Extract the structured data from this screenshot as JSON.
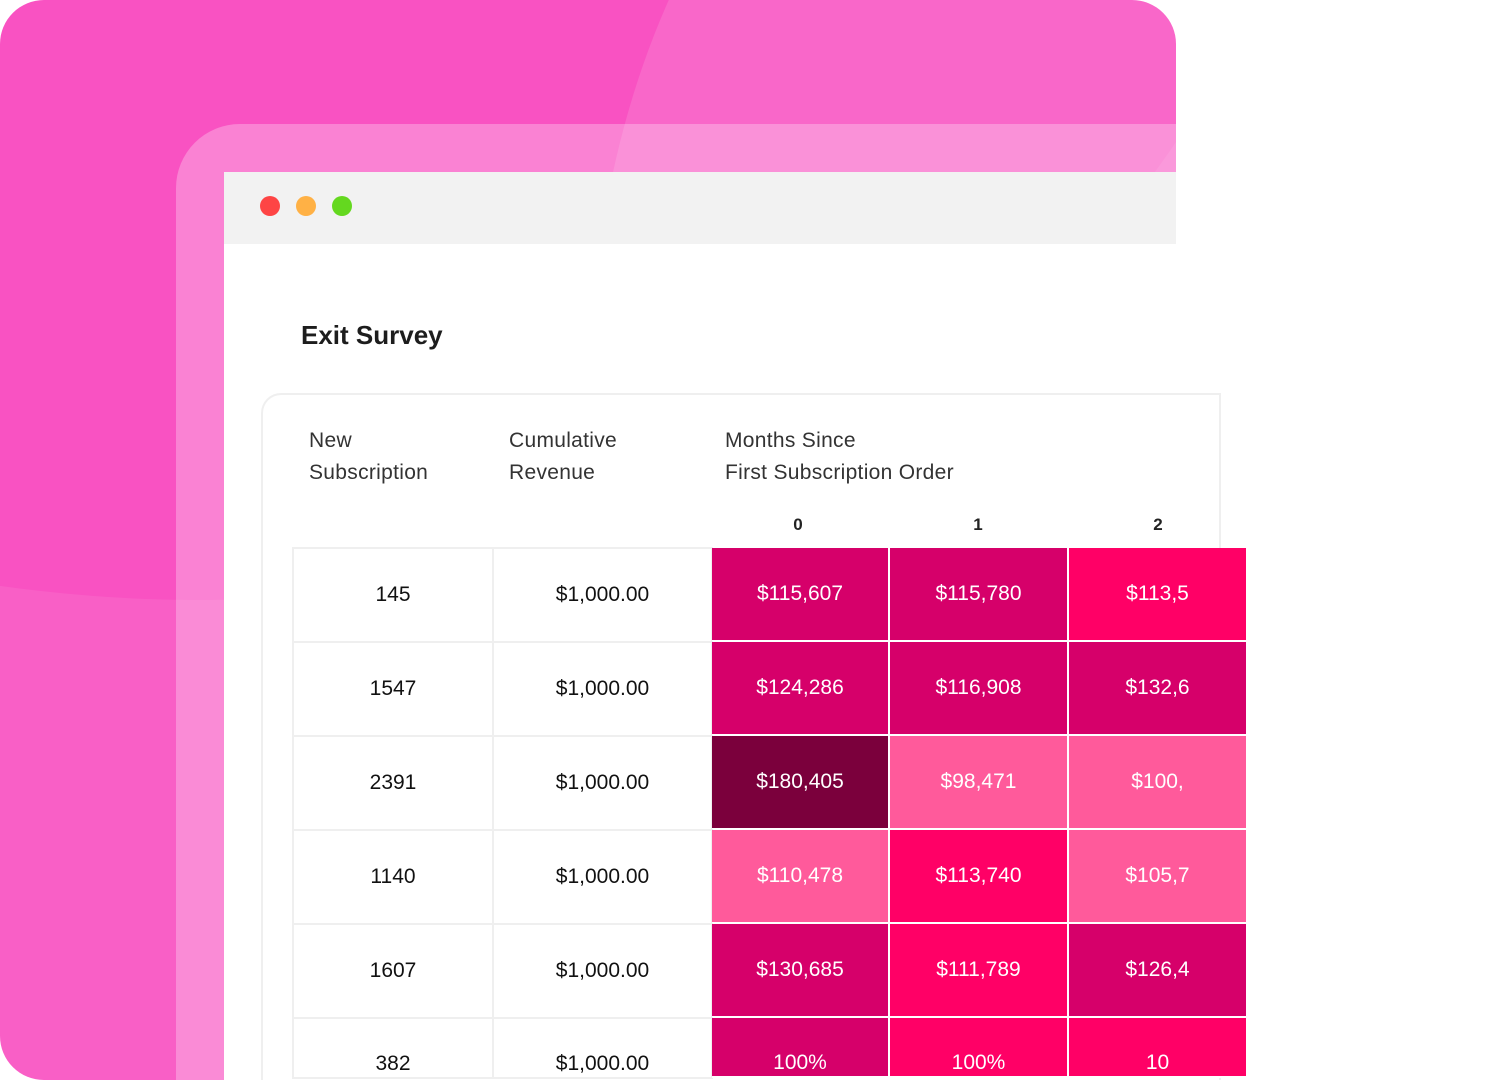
{
  "window": {
    "controls": [
      {
        "name": "close",
        "color": "#fe4545"
      },
      {
        "name": "minimize",
        "color": "#ffb145"
      },
      {
        "name": "maximize",
        "color": "#64d81f"
      }
    ]
  },
  "page": {
    "title": "Exit Survey"
  },
  "table": {
    "headers": {
      "new_subscription": [
        "New",
        "Subscription"
      ],
      "cumulative_revenue": [
        "Cumulative",
        "Revenue"
      ],
      "months_since": [
        "Months Since",
        "First Subscription Order"
      ]
    },
    "month_columns": [
      "0",
      "1",
      "2"
    ],
    "palette": {
      "dark": "#7b003c",
      "strong": "#d6006a",
      "hot": "#ff0066",
      "light": "#ff5a9b"
    },
    "rows": [
      {
        "new_subscription": "145",
        "cumulative_revenue": "$1,000.00",
        "cells": [
          {
            "text": "$115,607",
            "level": "strong"
          },
          {
            "text": "$115,780",
            "level": "strong"
          },
          {
            "text": "$113,5",
            "level": "hot"
          }
        ]
      },
      {
        "new_subscription": "1547",
        "cumulative_revenue": "$1,000.00",
        "cells": [
          {
            "text": "$124,286",
            "level": "strong"
          },
          {
            "text": "$116,908",
            "level": "strong"
          },
          {
            "text": "$132,6",
            "level": "strong"
          }
        ]
      },
      {
        "new_subscription": "2391",
        "cumulative_revenue": "$1,000.00",
        "cells": [
          {
            "text": "$180,405",
            "level": "dark"
          },
          {
            "text": "$98,471",
            "level": "light"
          },
          {
            "text": "$100,",
            "level": "light"
          }
        ]
      },
      {
        "new_subscription": "1140",
        "cumulative_revenue": "$1,000.00",
        "cells": [
          {
            "text": "$110,478",
            "level": "light"
          },
          {
            "text": "$113,740",
            "level": "hot"
          },
          {
            "text": "$105,7",
            "level": "light"
          }
        ]
      },
      {
        "new_subscription": "1607",
        "cumulative_revenue": "$1,000.00",
        "cells": [
          {
            "text": "$130,685",
            "level": "strong"
          },
          {
            "text": "$111,789",
            "level": "hot"
          },
          {
            "text": "$126,4",
            "level": "strong"
          }
        ]
      },
      {
        "new_subscription": "382",
        "cumulative_revenue": "$1,000.00",
        "cells": [
          {
            "text": "100%",
            "level": "strong"
          },
          {
            "text": "100%",
            "level": "hot"
          },
          {
            "text": "10",
            "level": "hot"
          }
        ]
      }
    ]
  }
}
